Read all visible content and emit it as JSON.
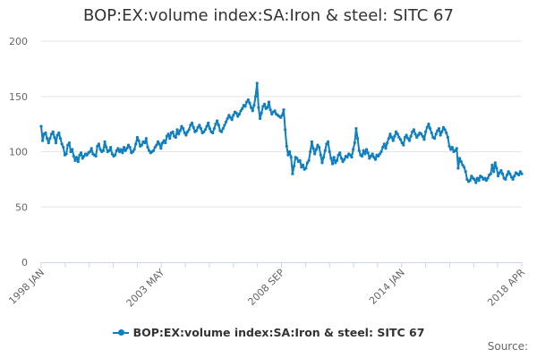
{
  "chart_data": {
    "type": "line",
    "title": "BOP:EX:volume index:SA:Iron & steel: SITC 67",
    "xlabel": "",
    "ylabel": "",
    "ylim": [
      0,
      200
    ],
    "y_ticks": [
      "0",
      "50",
      "100",
      "150",
      "200"
    ],
    "x_tick_labels": [
      "1998 JAN",
      "2003 MAY",
      "2008 SEP",
      "2014 JAN",
      "2018 APR"
    ],
    "grid": true,
    "legend_position": "bottom-center",
    "start_month": "1998 JAN",
    "series": [
      {
        "name": "BOP:EX:volume index:SA:Iron & steel: SITC 67",
        "color": "#0f7fbf",
        "values": [
          123,
          110,
          116,
          117,
          112,
          108,
          112,
          116,
          118,
          113,
          108,
          115,
          117,
          112,
          107,
          104,
          97,
          98,
          106,
          108,
          100,
          102,
          96,
          92,
          95,
          91,
          97,
          99,
          94,
          96,
          98,
          97,
          99,
          100,
          103,
          98,
          97,
          96,
          105,
          107,
          102,
          100,
          101,
          109,
          104,
          100,
          101,
          104,
          98,
          96,
          97,
          101,
          103,
          100,
          102,
          99,
          104,
          101,
          103,
          106,
          104,
          99,
          100,
          102,
          107,
          113,
          110,
          105,
          106,
          109,
          108,
          112,
          104,
          101,
          99,
          100,
          101,
          104,
          106,
          109,
          107,
          103,
          108,
          110,
          108,
          114,
          116,
          112,
          117,
          118,
          114,
          113,
          120,
          116,
          119,
          123,
          121,
          117,
          115,
          118,
          120,
          124,
          126,
          122,
          118,
          119,
          122,
          124,
          121,
          117,
          118,
          120,
          123,
          126,
          121,
          118,
          117,
          121,
          125,
          128,
          124,
          119,
          118,
          121,
          124,
          127,
          130,
          133,
          131,
          129,
          133,
          136,
          135,
          132,
          134,
          137,
          139,
          142,
          141,
          145,
          147,
          144,
          140,
          137,
          142,
          150,
          162,
          140,
          130,
          135,
          141,
          143,
          139,
          140,
          145,
          138,
          134,
          136,
          137,
          134,
          133,
          132,
          131,
          133,
          138,
          120,
          105,
          97,
          100,
          95,
          80,
          87,
          95,
          94,
          91,
          92,
          86,
          88,
          84,
          85,
          90,
          92,
          100,
          109,
          103,
          98,
          102,
          106,
          104,
          97,
          90,
          95,
          101,
          107,
          109,
          100,
          94,
          89,
          95,
          90,
          92,
          97,
          99,
          94,
          91,
          93,
          96,
          95,
          98,
          97,
          95,
          102,
          108,
          121,
          112,
          101,
          97,
          96,
          101,
          98,
          102,
          99,
          94,
          96,
          98,
          95,
          93,
          97,
          96,
          98,
          100,
          104,
          107,
          103,
          108,
          112,
          116,
          113,
          110,
          114,
          118,
          116,
          113,
          111,
          108,
          106,
          113,
          115,
          112,
          110,
          114,
          118,
          120,
          116,
          113,
          115,
          117,
          116,
          114,
          111,
          118,
          122,
          125,
          121,
          117,
          113,
          112,
          116,
          119,
          121,
          115,
          118,
          122,
          120,
          117,
          113,
          105,
          102,
          104,
          100,
          101,
          103,
          85,
          94,
          91,
          88,
          86,
          82,
          75,
          73,
          74,
          78,
          76,
          75,
          72,
          76,
          74,
          78,
          77,
          75,
          76,
          74,
          76,
          79,
          80,
          88,
          82,
          90,
          85,
          78,
          81,
          83,
          80,
          76,
          75,
          79,
          82,
          80,
          77,
          75,
          78,
          81,
          80,
          79,
          82,
          80
        ]
      }
    ]
  },
  "source_label": "Source:"
}
